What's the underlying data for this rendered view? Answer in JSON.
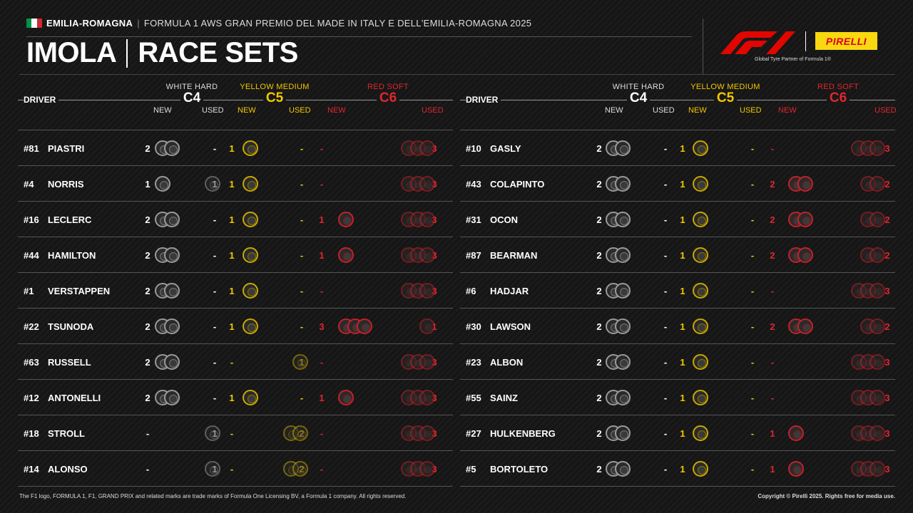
{
  "header": {
    "location": "EMILIA-ROMAGNA",
    "separator": "|",
    "event": "FORMULA 1 AWS GRAN PREMIO DEL MADE IN ITALY E DELL'EMILIA-ROMAGNA 2025",
    "title_left": "IMOLA",
    "title_right": "RACE SETS",
    "flag_colors": [
      "#009246",
      "#ffffff",
      "#ce2b37"
    ]
  },
  "logos": {
    "f1_icon": "f1-logo",
    "pirelli": "PIRELLI",
    "tagline": "Global Tyre Partner of Formula 1®",
    "pirelli_bg": "#f9d810",
    "pirelli_fg": "#d9001b"
  },
  "columns": {
    "driver": "DRIVER",
    "hard": {
      "label": "WHITE HARD",
      "code": "C4",
      "color": "#ffffff"
    },
    "medium": {
      "label": "YELLOW MEDIUM",
      "code": "C5",
      "color": "#f2c800"
    },
    "soft": {
      "label": "RED SOFT",
      "code": "C6",
      "color": "#e0262e"
    },
    "new": "NEW",
    "used": "USED"
  },
  "left": [
    {
      "num": "#81",
      "name": "PIASTRI",
      "hn": "2",
      "hu": "-",
      "mn": "1",
      "mu": "-",
      "sn": "-",
      "su": "3"
    },
    {
      "num": "#4",
      "name": "NORRIS",
      "hn": "1",
      "hu": "1",
      "mn": "1",
      "mu": "-",
      "sn": "-",
      "su": "3"
    },
    {
      "num": "#16",
      "name": "LECLERC",
      "hn": "2",
      "hu": "-",
      "mn": "1",
      "mu": "-",
      "sn": "1",
      "su": "3"
    },
    {
      "num": "#44",
      "name": "HAMILTON",
      "hn": "2",
      "hu": "-",
      "mn": "1",
      "mu": "-",
      "sn": "1",
      "su": "3"
    },
    {
      "num": "#1",
      "name": "VERSTAPPEN",
      "hn": "2",
      "hu": "-",
      "mn": "1",
      "mu": "-",
      "sn": "-",
      "su": "3"
    },
    {
      "num": "#22",
      "name": "TSUNODA",
      "hn": "2",
      "hu": "-",
      "mn": "1",
      "mu": "-",
      "sn": "3",
      "su": "1"
    },
    {
      "num": "#63",
      "name": "RUSSELL",
      "hn": "2",
      "hu": "-",
      "mn": "-",
      "mu": "1",
      "sn": "-",
      "su": "3"
    },
    {
      "num": "#12",
      "name": "ANTONELLI",
      "hn": "2",
      "hu": "-",
      "mn": "1",
      "mu": "-",
      "sn": "1",
      "su": "3"
    },
    {
      "num": "#18",
      "name": "STROLL",
      "hn": "-",
      "hu": "1",
      "mn": "-",
      "mu": "2",
      "sn": "-",
      "su": "3"
    },
    {
      "num": "#14",
      "name": "ALONSO",
      "hn": "-",
      "hu": "1",
      "mn": "-",
      "mu": "2",
      "sn": "-",
      "su": "3"
    }
  ],
  "right": [
    {
      "num": "#10",
      "name": "GASLY",
      "hn": "2",
      "hu": "-",
      "mn": "1",
      "mu": "-",
      "sn": "-",
      "su": "3"
    },
    {
      "num": "#43",
      "name": "COLAPINTO",
      "hn": "2",
      "hu": "-",
      "mn": "1",
      "mu": "-",
      "sn": "2",
      "su": "2"
    },
    {
      "num": "#31",
      "name": "OCON",
      "hn": "2",
      "hu": "-",
      "mn": "1",
      "mu": "-",
      "sn": "2",
      "su": "2"
    },
    {
      "num": "#87",
      "name": "BEARMAN",
      "hn": "2",
      "hu": "-",
      "mn": "1",
      "mu": "-",
      "sn": "2",
      "su": "2"
    },
    {
      "num": "#6",
      "name": "HADJAR",
      "hn": "2",
      "hu": "-",
      "mn": "1",
      "mu": "-",
      "sn": "-",
      "su": "3"
    },
    {
      "num": "#30",
      "name": "LAWSON",
      "hn": "2",
      "hu": "-",
      "mn": "1",
      "mu": "-",
      "sn": "2",
      "su": "2"
    },
    {
      "num": "#23",
      "name": "ALBON",
      "hn": "2",
      "hu": "-",
      "mn": "1",
      "mu": "-",
      "sn": "-",
      "su": "3"
    },
    {
      "num": "#55",
      "name": "SAINZ",
      "hn": "2",
      "hu": "-",
      "mn": "1",
      "mu": "-",
      "sn": "-",
      "su": "3"
    },
    {
      "num": "#27",
      "name": "HULKENBERG",
      "hn": "2",
      "hu": "-",
      "mn": "1",
      "mu": "-",
      "sn": "1",
      "su": "3"
    },
    {
      "num": "#5",
      "name": "BORTOLETO",
      "hn": "2",
      "hu": "-",
      "mn": "1",
      "mu": "-",
      "sn": "1",
      "su": "3"
    }
  ],
  "footer": {
    "left": "The F1 logo, FORMULA 1, F1, GRAND PRIX and related marks are trade marks of Formula One Licensing BV, a Formula 1 company. All rights reserved.",
    "right": "Copyright © Pirelli 2025. Rights free for media use."
  }
}
